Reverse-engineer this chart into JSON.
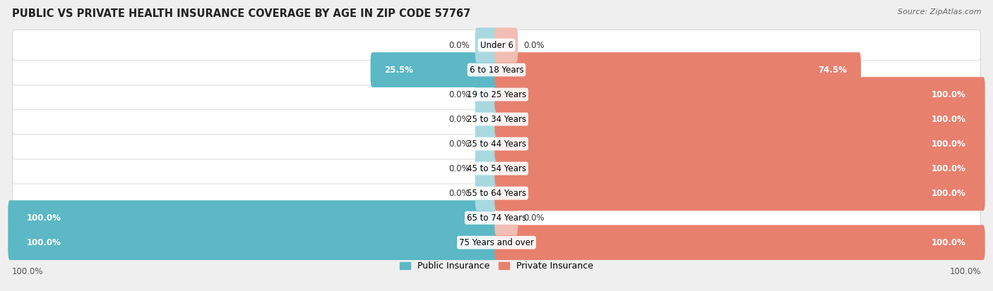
{
  "title": "PUBLIC VS PRIVATE HEALTH INSURANCE COVERAGE BY AGE IN ZIP CODE 57767",
  "source": "Source: ZipAtlas.com",
  "categories": [
    "Under 6",
    "6 to 18 Years",
    "19 to 25 Years",
    "25 to 34 Years",
    "35 to 44 Years",
    "45 to 54 Years",
    "55 to 64 Years",
    "65 to 74 Years",
    "75 Years and over"
  ],
  "public_values": [
    0.0,
    25.5,
    0.0,
    0.0,
    0.0,
    0.0,
    0.0,
    100.0,
    100.0
  ],
  "private_values": [
    0.0,
    74.5,
    100.0,
    100.0,
    100.0,
    100.0,
    100.0,
    0.0,
    100.0
  ],
  "public_color": "#5bb8c4",
  "private_color": "#e8806e",
  "public_color_light": "#a8d9df",
  "private_color_light": "#f2bdb3",
  "bg_color": "#efefef",
  "title_fontsize": 10.5,
  "source_fontsize": 8,
  "label_fontsize": 8.5,
  "category_fontsize": 8.5,
  "legend_fontsize": 9,
  "axis_label_fontsize": 8.5
}
